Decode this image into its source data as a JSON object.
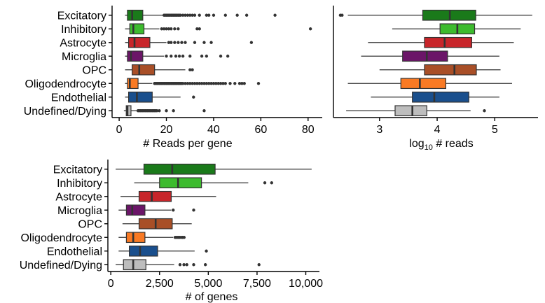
{
  "chart_data": [
    {
      "type": "boxplot",
      "orientation": "horizontal",
      "xlabel": "# Reads per gene",
      "ylabel": "",
      "xlim": [
        -3,
        86
      ],
      "xticks": [
        0,
        20,
        40,
        60,
        80
      ],
      "x_tick_labels": [
        "0",
        "20",
        "40",
        "60",
        "80"
      ],
      "categories": [
        "Excitatory",
        "Inhibitory",
        "Astrocyte",
        "Microglia",
        "OPC",
        "Oligodendrocyte",
        "Endothelial",
        "Undefined/Dying"
      ],
      "series": [
        {
          "category": "Excitatory",
          "color": "#1a7a1a",
          "min": 2.5,
          "q1": 3.5,
          "median": 5.5,
          "q3": 10,
          "max": 18.5,
          "outliers": [
            19,
            19.5,
            20,
            20.5,
            21,
            21.5,
            22,
            22.5,
            23,
            23.5,
            24,
            24.5,
            25,
            25.5,
            26,
            27,
            28,
            29,
            30,
            31,
            32,
            34,
            37,
            38,
            40,
            45,
            50,
            54,
            66
          ]
        },
        {
          "category": "Inhibitory",
          "color": "#3dbb2e",
          "min": 2.5,
          "q1": 4.5,
          "median": 6,
          "q3": 10.5,
          "max": 17,
          "outliers": [
            18,
            19,
            20,
            21,
            22,
            23.5,
            25,
            33,
            34,
            81
          ]
        },
        {
          "category": "Astrocyte",
          "color": "#c8252a",
          "min": 2.5,
          "q1": 4,
          "median": 6.5,
          "q3": 13,
          "max": 20,
          "outliers": [
            21,
            22,
            23.5,
            25,
            26.5,
            28,
            32,
            36,
            39,
            56
          ]
        },
        {
          "category": "Microglia",
          "color": "#6b1568",
          "min": 2.5,
          "q1": 3.5,
          "median": 5,
          "q3": 10,
          "max": 19,
          "outliers": [
            20,
            22,
            24,
            25.5,
            27,
            30,
            35,
            37,
            43,
            46
          ]
        },
        {
          "category": "OPC",
          "color": "#a94f27",
          "min": 2.5,
          "q1": 5.5,
          "median": 8.5,
          "q3": 15,
          "max": 28,
          "outliers": [
            30,
            31
          ]
        },
        {
          "category": "Oligodendrocyte",
          "color": "#f97a24",
          "min": 2.5,
          "q1": 3.5,
          "median": 4.5,
          "q3": 8,
          "max": 14,
          "outliers": [
            15,
            15.5,
            16,
            16.5,
            17,
            17.5,
            18,
            18.5,
            19,
            19.5,
            20,
            20.5,
            21,
            21.5,
            22,
            22.5,
            23,
            23.5,
            24,
            24.5,
            25,
            25.5,
            26,
            26.5,
            27,
            28,
            29,
            30,
            31,
            32,
            33,
            34,
            35,
            36,
            37,
            38,
            39,
            40,
            41,
            42,
            43,
            44,
            45,
            47,
            49,
            51,
            52,
            53,
            59
          ]
        },
        {
          "category": "Endothelial",
          "color": "#1a4f8d",
          "min": 2.5,
          "q1": 4,
          "median": 7.5,
          "q3": 14,
          "max": 26,
          "outliers": [
            31.5
          ]
        },
        {
          "category": "Undefined/Dying",
          "color": "#bdbdbd",
          "min": 2,
          "q1": 3,
          "median": 3.5,
          "q3": 5,
          "max": 7.5,
          "outliers": [
            8,
            8.5,
            9,
            9.5,
            10,
            10.5,
            11,
            11.5,
            12,
            12.5,
            13,
            13.5,
            14,
            14.5,
            15,
            15.5,
            16,
            17,
            20,
            23,
            36
          ]
        }
      ]
    },
    {
      "type": "boxplot",
      "orientation": "horizontal",
      "xlabel_prefix": "log",
      "xlabel_sub": "10",
      "xlabel_suffix": " # reads",
      "xlim": [
        2.2,
        5.75
      ],
      "xticks": [
        3,
        4,
        5
      ],
      "x_tick_labels": [
        "3",
        "4",
        "5"
      ],
      "categories": [
        "Excitatory",
        "Inhibitory",
        "Astrocyte",
        "Microglia",
        "OPC",
        "Oligodendrocyte",
        "Endothelial",
        "Undefined/Dying"
      ],
      "series": [
        {
          "category": "Excitatory",
          "color": "#1a7a1a",
          "min": 2.45,
          "q1": 3.75,
          "median": 4.22,
          "q3": 4.67,
          "max": 5.65,
          "outliers": [
            2.32,
            2.35
          ]
        },
        {
          "category": "Inhibitory",
          "color": "#3dbb2e",
          "min": 3.22,
          "q1": 4.05,
          "median": 4.35,
          "q3": 4.65,
          "max": 5.45,
          "outliers": []
        },
        {
          "category": "Astrocyte",
          "color": "#c8252a",
          "min": 2.8,
          "q1": 3.78,
          "median": 4.13,
          "q3": 4.6,
          "max": 5.33,
          "outliers": []
        },
        {
          "category": "Microglia",
          "color": "#6b1568",
          "min": 2.68,
          "q1": 3.4,
          "median": 3.82,
          "q3": 4.18,
          "max": 5.08,
          "outliers": []
        },
        {
          "category": "OPC",
          "color": "#a94f27",
          "min": 3.0,
          "q1": 3.78,
          "median": 4.3,
          "q3": 4.68,
          "max": 5.1,
          "outliers": []
        },
        {
          "category": "Oligodendrocyte",
          "color": "#f97a24",
          "min": 2.45,
          "q1": 3.37,
          "median": 3.7,
          "q3": 4.15,
          "max": 5.3,
          "outliers": []
        },
        {
          "category": "Endothelial",
          "color": "#1a4f8d",
          "min": 2.85,
          "q1": 3.57,
          "median": 3.95,
          "q3": 4.55,
          "max": 5.08,
          "outliers": []
        },
        {
          "category": "Undefined/Dying",
          "color": "#bdbdbd",
          "min": 2.42,
          "q1": 3.27,
          "median": 3.57,
          "q3": 3.82,
          "max": 4.58,
          "outliers": [
            4.82
          ]
        }
      ]
    },
    {
      "type": "boxplot",
      "orientation": "horizontal",
      "xlabel": "# of genes",
      "xlim": [
        -150,
        10700
      ],
      "xticks": [
        0,
        2500,
        5000,
        7500,
        10000
      ],
      "x_tick_labels": [
        "0",
        "2,500",
        "5,000",
        "7,500",
        "10,000"
      ],
      "categories": [
        "Excitatory",
        "Inhibitory",
        "Astrocyte",
        "Microglia",
        "OPC",
        "Oligodendrocyte",
        "Endothelial",
        "Undefined/Dying"
      ],
      "series": [
        {
          "category": "Excitatory",
          "color": "#1a7a1a",
          "min": 250,
          "q1": 1700,
          "median": 3150,
          "q3": 5350,
          "max": 10300,
          "outliers": []
        },
        {
          "category": "Inhibitory",
          "color": "#3dbb2e",
          "min": 1200,
          "q1": 2500,
          "median": 3450,
          "q3": 4650,
          "max": 7050,
          "outliers": [
            7900,
            8250
          ]
        },
        {
          "category": "Astrocyte",
          "color": "#c8252a",
          "min": 500,
          "q1": 1450,
          "median": 2100,
          "q3": 3100,
          "max": 5400,
          "outliers": []
        },
        {
          "category": "Microglia",
          "color": "#6b1568",
          "min": 400,
          "q1": 800,
          "median": 1100,
          "q3": 1750,
          "max": 3100,
          "outliers": [
            3200,
            4250
          ]
        },
        {
          "category": "OPC",
          "color": "#a94f27",
          "min": 600,
          "q1": 1450,
          "median": 2300,
          "q3": 3150,
          "max": 4150,
          "outliers": []
        },
        {
          "category": "Oligodendrocyte",
          "color": "#f97a24",
          "min": 400,
          "q1": 800,
          "median": 1150,
          "q3": 1750,
          "max": 3200,
          "outliers": [
            3300,
            3380,
            3450,
            3520,
            3600,
            3680,
            3760
          ]
        },
        {
          "category": "Endothelial",
          "color": "#1a4f8d",
          "min": 400,
          "q1": 950,
          "median": 1500,
          "q3": 2400,
          "max": 4300,
          "outliers": [
            4900
          ]
        },
        {
          "category": "Undefined/Dying",
          "color": "#bdbdbd",
          "min": 250,
          "q1": 650,
          "median": 1150,
          "q3": 1800,
          "max": 3250,
          "outliers": [
            3550,
            3750,
            3900,
            4250,
            4850,
            7600
          ]
        }
      ]
    }
  ]
}
